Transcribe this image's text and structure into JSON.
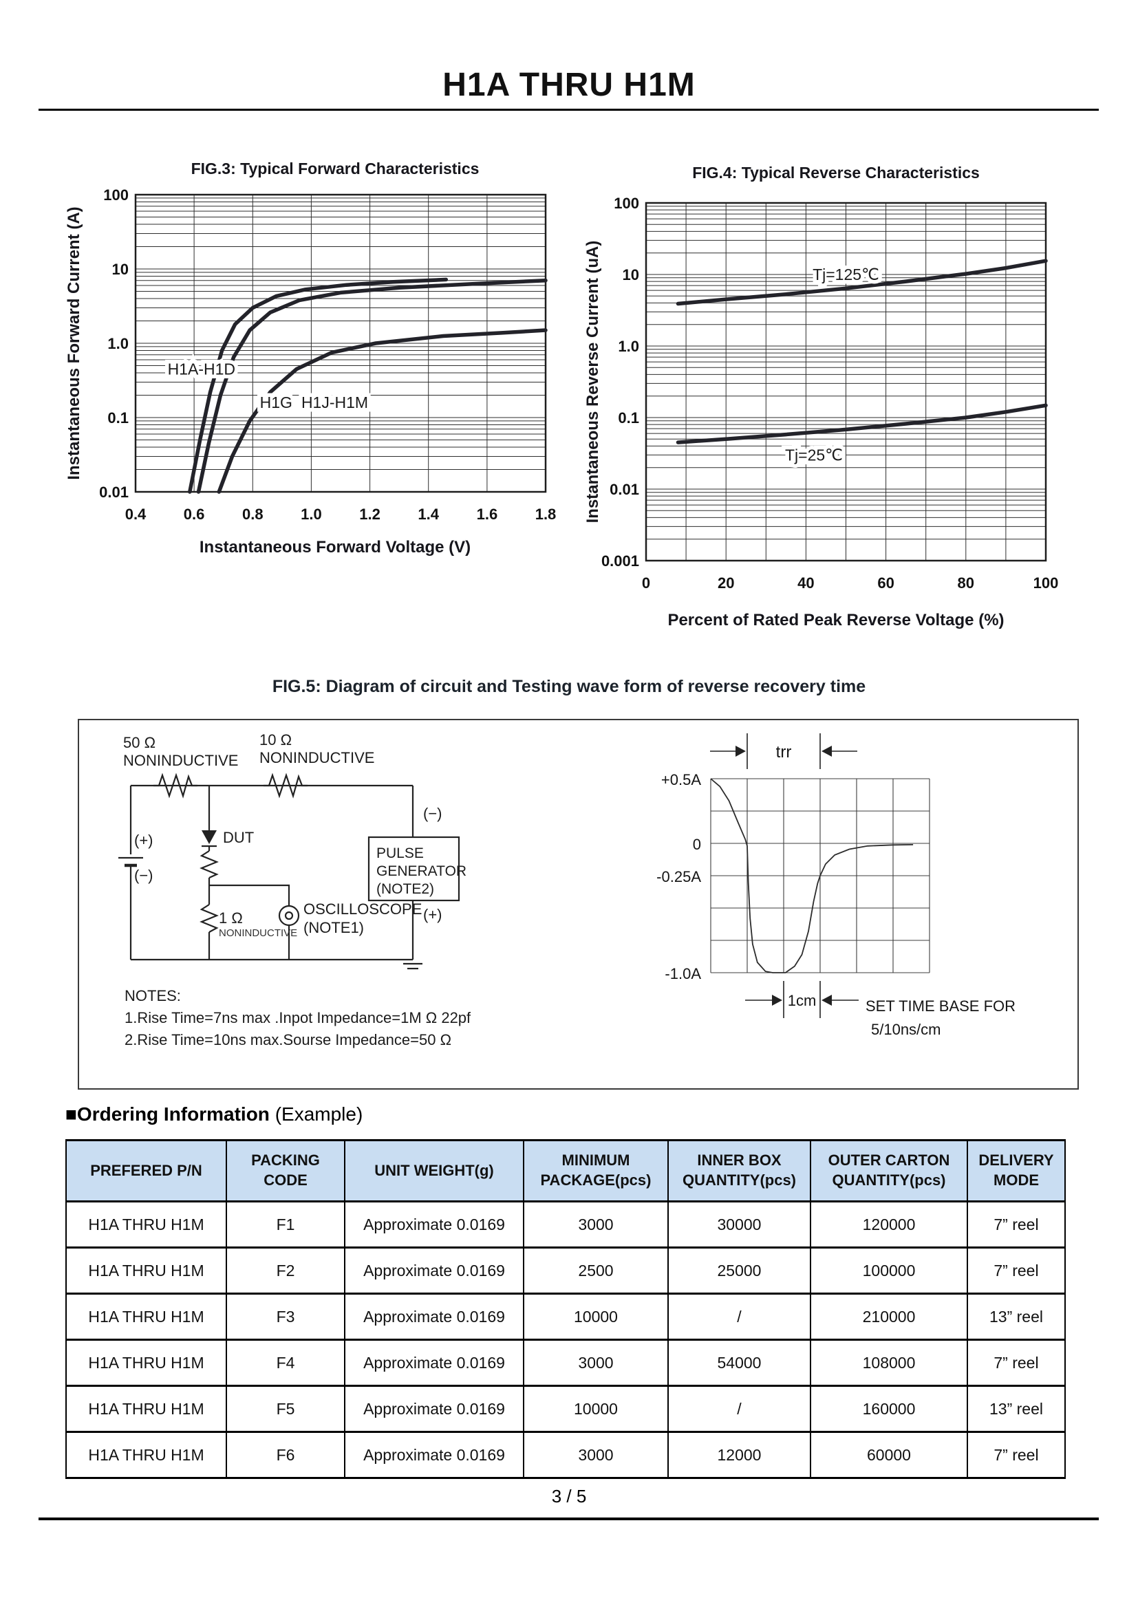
{
  "page": {
    "title": "H1A THRU H1M",
    "footer": "3 / 5"
  },
  "chart_data": [
    {
      "type": "line",
      "name": "fig3",
      "title": "FIG.3: Typical Forward Characteristics",
      "xlabel": "Instantaneous Forward Voltage (V)",
      "ylabel": "Instantaneous Forward Current (A)",
      "x_range": [
        0.4,
        1.8
      ],
      "y_log_range": [
        -2,
        2
      ],
      "y_scale": "log",
      "grid": "on",
      "x_gridlines": [
        0.4,
        0.6,
        0.8,
        1.0,
        1.2,
        1.4,
        1.6,
        1.8
      ],
      "x_tick_values": [
        0.4,
        0.6,
        0.8,
        1.0,
        1.2,
        1.4,
        1.6,
        1.8
      ],
      "x_tick_labels": [
        "0.4",
        "0.6",
        "0.8",
        "1.0",
        "1.2",
        "1.4",
        "1.6",
        "1.8"
      ],
      "y_ticks": [
        "100",
        "10",
        "1.0",
        "0.1",
        "0.01"
      ],
      "series": [
        {
          "name": "H1A-H1D",
          "points": [
            [
              0.585,
              0.01
            ],
            [
              0.62,
              0.05
            ],
            [
              0.655,
              0.22
            ],
            [
              0.695,
              0.8
            ],
            [
              0.74,
              1.8
            ],
            [
              0.8,
              3.0
            ],
            [
              0.88,
              4.3
            ],
            [
              0.98,
              5.3
            ],
            [
              1.12,
              6.1
            ],
            [
              1.28,
              6.7
            ],
            [
              1.46,
              7.2
            ]
          ]
        },
        {
          "name": "H1G",
          "points": [
            [
              0.615,
              0.01
            ],
            [
              0.65,
              0.045
            ],
            [
              0.69,
              0.2
            ],
            [
              0.735,
              0.65
            ],
            [
              0.79,
              1.5
            ],
            [
              0.86,
              2.6
            ],
            [
              0.96,
              3.8
            ],
            [
              1.1,
              4.8
            ],
            [
              1.3,
              5.6
            ],
            [
              1.55,
              6.3
            ],
            [
              1.8,
              7.0
            ]
          ]
        },
        {
          "name": "H1J-H1M",
          "points": [
            [
              0.685,
              0.01
            ],
            [
              0.73,
              0.03
            ],
            [
              0.79,
              0.09
            ],
            [
              0.86,
              0.22
            ],
            [
              0.95,
              0.45
            ],
            [
              1.07,
              0.75
            ],
            [
              1.22,
              1.0
            ],
            [
              1.45,
              1.25
            ],
            [
              1.65,
              1.38
            ],
            [
              1.8,
              1.5
            ]
          ]
        }
      ],
      "labels": [
        {
          "text": "H1A-H1D",
          "x": 0.625,
          "y": 0.45
        },
        {
          "text": "H1G",
          "x": 0.88,
          "y": 0.16
        },
        {
          "text": "H1J-H1M",
          "x": 1.08,
          "y": 0.16
        }
      ]
    },
    {
      "type": "line",
      "name": "fig4",
      "title": "FIG.4: Typical Reverse Characteristics",
      "xlabel": "Percent of Rated Peak Reverse Voltage (%)",
      "ylabel": "Instantaneous Reverse Current (uA)",
      "x_range": [
        0,
        100
      ],
      "y_log_range": [
        -3,
        2
      ],
      "y_scale": "log",
      "grid": "on",
      "x_gridlines": [
        0,
        10,
        20,
        30,
        40,
        50,
        60,
        70,
        80,
        90,
        100
      ],
      "x_tick_values": [
        0,
        20,
        40,
        60,
        80,
        100
      ],
      "x_tick_labels": [
        "0",
        "20",
        "40",
        "60",
        "80",
        "100"
      ],
      "y_ticks": [
        "100",
        "10",
        "1.0",
        "0.1",
        "0.01",
        "0.001"
      ],
      "series": [
        {
          "name": "Tj=125C",
          "points": [
            [
              8,
              3.9
            ],
            [
              20,
              4.5
            ],
            [
              35,
              5.3
            ],
            [
              50,
              6.4
            ],
            [
              65,
              8.0
            ],
            [
              80,
              10.2
            ],
            [
              90,
              12.3
            ],
            [
              100,
              15.5
            ]
          ]
        },
        {
          "name": "Tj=25C",
          "points": [
            [
              8,
              0.045
            ],
            [
              20,
              0.05
            ],
            [
              35,
              0.058
            ],
            [
              50,
              0.068
            ],
            [
              65,
              0.082
            ],
            [
              80,
              0.1
            ],
            [
              90,
              0.12
            ],
            [
              100,
              0.148
            ]
          ]
        }
      ],
      "labels": [
        {
          "text": "Tj=125℃",
          "x": 50,
          "y": 10
        },
        {
          "text": "Tj=25℃",
          "x": 42,
          "y": 0.03
        }
      ]
    },
    {
      "type": "line",
      "name": "trr-test-waveform",
      "x_unit": "cm",
      "x_range": [
        0,
        6
      ],
      "y_range": [
        -1.0,
        0.5
      ],
      "grid": {
        "cols": 6,
        "rows": 6
      },
      "y_axis_labels": [
        {
          "row": 0,
          "text": "+0.5A"
        },
        {
          "row": 2,
          "text": "0"
        },
        {
          "row": 3,
          "text": "-0.25A"
        },
        {
          "row": 6,
          "text": "-1.0A"
        }
      ],
      "annotations": {
        "trr": {
          "label": "trr",
          "from_cm": 1,
          "to_cm": 3
        },
        "scale": {
          "label": "1cm",
          "from_cm": 2,
          "to_cm": 3
        },
        "note": [
          "SET TIME BASE FOR",
          "5/10ns/cm"
        ]
      },
      "points": [
        [
          0,
          0.5
        ],
        [
          0.25,
          0.44
        ],
        [
          0.5,
          0.33
        ],
        [
          0.75,
          0.16
        ],
        [
          0.95,
          0.03
        ],
        [
          1.0,
          -0.02
        ],
        [
          1.03,
          -0.3
        ],
        [
          1.08,
          -0.58
        ],
        [
          1.15,
          -0.78
        ],
        [
          1.28,
          -0.92
        ],
        [
          1.5,
          -0.99
        ],
        [
          1.7,
          -1.0
        ],
        [
          2.05,
          -1.0
        ],
        [
          2.3,
          -0.95
        ],
        [
          2.5,
          -0.86
        ],
        [
          2.68,
          -0.68
        ],
        [
          2.82,
          -0.45
        ],
        [
          2.93,
          -0.31
        ],
        [
          3.0,
          -0.25
        ],
        [
          3.15,
          -0.16
        ],
        [
          3.4,
          -0.09
        ],
        [
          3.8,
          -0.045
        ],
        [
          4.3,
          -0.02
        ],
        [
          5.0,
          -0.012
        ],
        [
          5.55,
          -0.01
        ]
      ]
    }
  ],
  "fig5": {
    "title": "FIG.5: Diagram of circuit and Testing wave form of reverse recovery time",
    "circuit": {
      "r50": "50 Ω",
      "r50_sub": "NONINDUCTIVE",
      "r10": "10 Ω",
      "r10_sub": "NONINDUCTIVE",
      "dut": "DUT",
      "r1": "1 Ω",
      "r1_sub": "NONINDUCTIVE",
      "osc": "OSCILLOSCOPE",
      "osc_note": "(NOTE1)",
      "pg1": "PULSE",
      "pg2": "GENERATOR",
      "pg3": "(NOTE2)",
      "plus_left": "(+)",
      "minus_left": "(−)",
      "pg_minus": "(−)",
      "pg_plus": "(+)",
      "notes_title": "NOTES:",
      "note1": "1.Rise Time=7ns max .Inpot Impedance=1M Ω  22pf",
      "note2": "2.Rise Time=10ns max.Sourse Impedance=50 Ω"
    }
  },
  "ordering": {
    "heading_main": "■Ordering Information",
    "heading_example": " (Example)",
    "headers": [
      [
        "PREFERED P/N"
      ],
      [
        "PACKING",
        "CODE"
      ],
      [
        "UNIT WEIGHT(g)"
      ],
      [
        "MINIMUM",
        "PACKAGE(pcs)"
      ],
      [
        "INNER BOX",
        "QUANTITY(pcs)"
      ],
      [
        "OUTER CARTON",
        "QUANTITY(pcs)"
      ],
      [
        "DELIVERY",
        "MODE"
      ]
    ],
    "rows": [
      [
        "H1A THRU H1M",
        "F1",
        "Approximate 0.0169",
        "3000",
        "30000",
        "120000",
        "7” reel"
      ],
      [
        "H1A THRU H1M",
        "F2",
        "Approximate 0.0169",
        "2500",
        "25000",
        "100000",
        "7” reel"
      ],
      [
        "H1A THRU H1M",
        "F3",
        "Approximate 0.0169",
        "10000",
        "/",
        "210000",
        "13” reel"
      ],
      [
        "H1A THRU H1M",
        "F4",
        "Approximate 0.0169",
        "3000",
        "54000",
        "108000",
        "7” reel"
      ],
      [
        "H1A THRU H1M",
        "F5",
        "Approximate 0.0169",
        "10000",
        "/",
        "160000",
        "13” reel"
      ],
      [
        "H1A THRU H1M",
        "F6",
        "Approximate 0.0169",
        "3000",
        "12000",
        "60000",
        "7” reel"
      ]
    ]
  }
}
